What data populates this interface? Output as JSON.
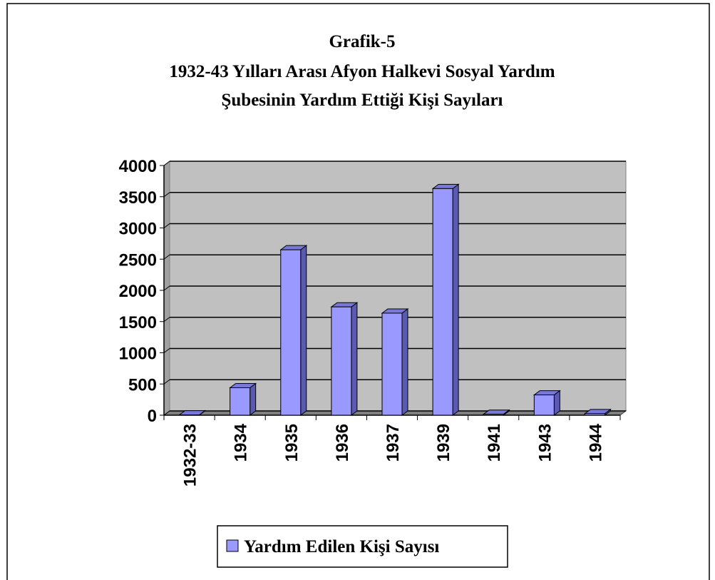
{
  "chart_data": {
    "type": "bar3d",
    "title": [
      "Grafik-5",
      "1932-43 Yılları Arası Afyon Halkevi Sosyal Yardım",
      "Şubesinin Yardım Ettiği Kişi Sayıları"
    ],
    "categories": [
      "1932-33",
      "1934",
      "1935",
      "1936",
      "1937",
      "1939",
      "1941",
      "1943",
      "1944"
    ],
    "series": [
      {
        "name": "Yardım Edilen Kişi Sayısı",
        "color": "#9999ff",
        "values": [
          5,
          440,
          2650,
          1735,
          1635,
          3630,
          15,
          325,
          25
        ]
      }
    ],
    "ylim": [
      0,
      4000
    ],
    "yticks": [
      0,
      500,
      1000,
      1500,
      2000,
      2500,
      3000,
      3500,
      4000
    ],
    "grid": true,
    "legend": "bottom"
  }
}
